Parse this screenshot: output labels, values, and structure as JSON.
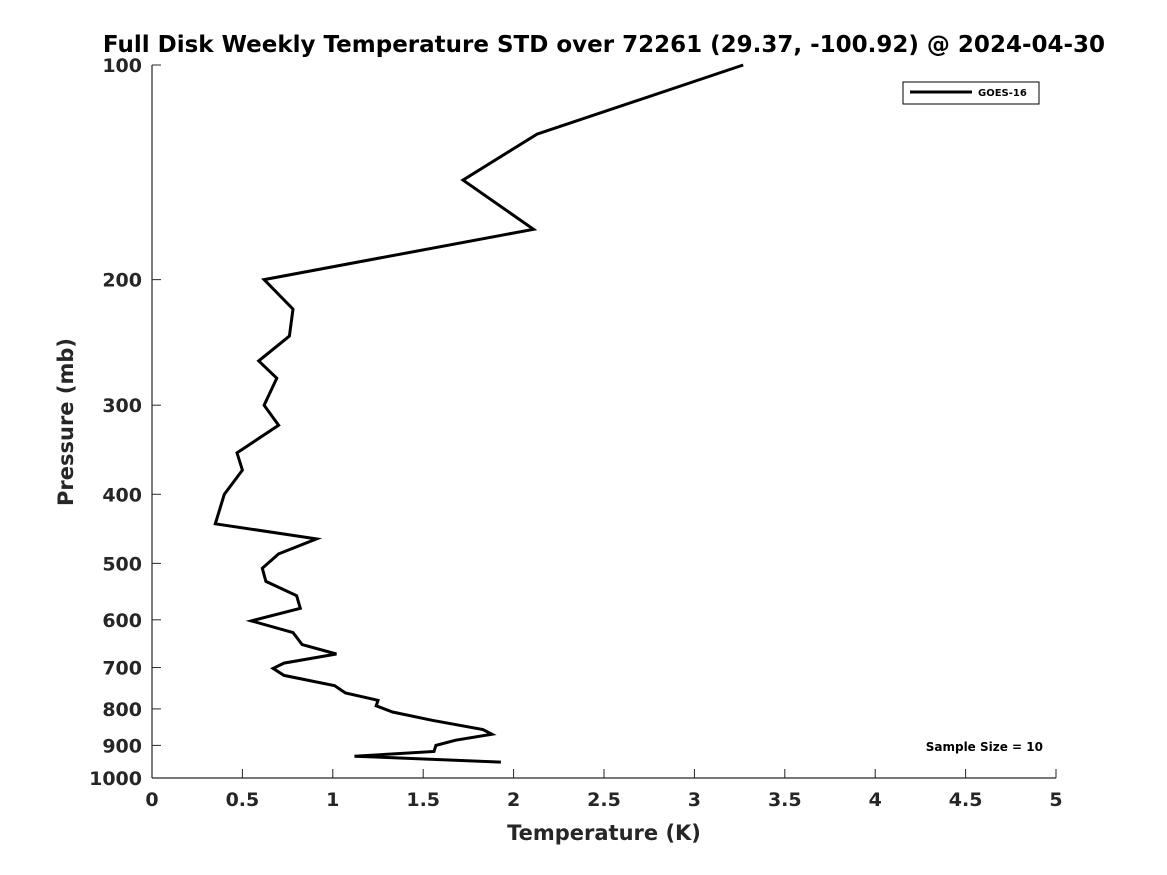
{
  "chart_data": {
    "type": "line",
    "title": "Full Disk Weekly Temperature STD over 72261 (29.37, -100.92) @ 2024-04-30",
    "xlabel": "Temperature (K)",
    "ylabel": "Pressure (mb)",
    "xlim": [
      0,
      5
    ],
    "ylim": [
      100,
      1000
    ],
    "y_scale": "log",
    "y_reversed": true,
    "grid": false,
    "legend_position": "top-right",
    "x_ticks": [
      "0",
      "0.5",
      "1",
      "1.5",
      "2",
      "2.5",
      "3",
      "3.5",
      "4",
      "4.5",
      "5"
    ],
    "y_ticks": [
      "100",
      "200",
      "300",
      "400",
      "500",
      "600",
      "700",
      "800",
      "900",
      "1000"
    ],
    "series": [
      {
        "name": "GOES-16",
        "color": "#000000",
        "points": [
          [
            3.27,
            100
          ],
          [
            2.13,
            125
          ],
          [
            1.72,
            145
          ],
          [
            2.11,
            170
          ],
          [
            0.62,
            200
          ],
          [
            0.78,
            220
          ],
          [
            0.76,
            240
          ],
          [
            0.59,
            260
          ],
          [
            0.69,
            275
          ],
          [
            0.62,
            300
          ],
          [
            0.7,
            320
          ],
          [
            0.47,
            350
          ],
          [
            0.5,
            370
          ],
          [
            0.4,
            400
          ],
          [
            0.35,
            440
          ],
          [
            0.91,
            462
          ],
          [
            0.7,
            485
          ],
          [
            0.61,
            508
          ],
          [
            0.63,
            530
          ],
          [
            0.8,
            555
          ],
          [
            0.82,
            578
          ],
          [
            0.55,
            602
          ],
          [
            0.78,
            625
          ],
          [
            0.83,
            650
          ],
          [
            1.02,
            670
          ],
          [
            0.73,
            690
          ],
          [
            0.67,
            702
          ],
          [
            0.73,
            718
          ],
          [
            1.01,
            742
          ],
          [
            1.07,
            760
          ],
          [
            1.25,
            778
          ],
          [
            1.24,
            792
          ],
          [
            1.33,
            808
          ],
          [
            1.55,
            830
          ],
          [
            1.83,
            855
          ],
          [
            1.88,
            868
          ],
          [
            1.68,
            885
          ],
          [
            1.57,
            900
          ],
          [
            1.56,
            918
          ],
          [
            1.12,
            932
          ],
          [
            1.93,
            950
          ]
        ]
      }
    ],
    "annotations": [
      "Sample Size = 10"
    ]
  }
}
